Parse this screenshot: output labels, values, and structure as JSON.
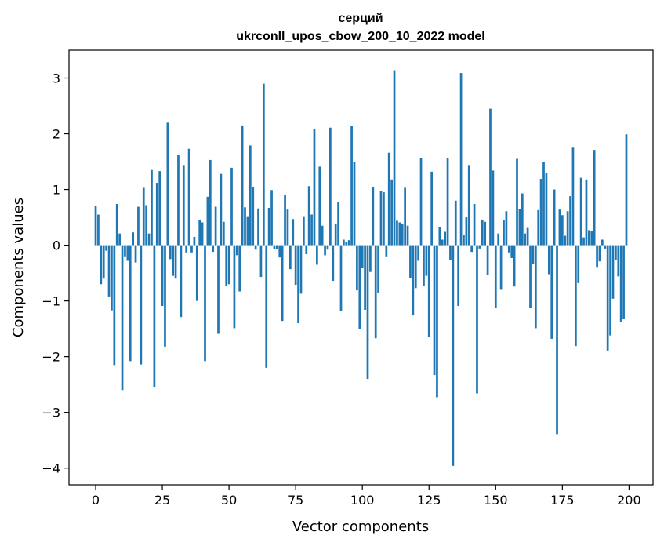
{
  "chart_data": {
    "type": "bar",
    "title_line1": "серций",
    "title_line2": "ukrconll_upos_cbow_200_10_2022 model",
    "xlabel": "Vector components",
    "ylabel": "Components values",
    "xlim": [
      -10,
      209
    ],
    "ylim": [
      -4.3,
      3.5
    ],
    "x_ticks": [
      0,
      25,
      50,
      75,
      100,
      125,
      150,
      175,
      200
    ],
    "x_tick_labels": [
      "0",
      "25",
      "50",
      "75",
      "100",
      "125",
      "150",
      "175",
      "200"
    ],
    "y_ticks": [
      -4,
      -3,
      -2,
      -1,
      0,
      1,
      2,
      3
    ],
    "y_tick_labels": [
      "−4",
      "−3",
      "−2",
      "−1",
      "0",
      "1",
      "2",
      "3"
    ],
    "bar_color": "#1f77b4",
    "x": [
      0,
      1,
      2,
      3,
      4,
      5,
      6,
      7,
      8,
      9,
      10,
      11,
      12,
      13,
      14,
      15,
      16,
      17,
      18,
      19,
      20,
      21,
      22,
      23,
      24,
      25,
      26,
      27,
      28,
      29,
      30,
      31,
      32,
      33,
      34,
      35,
      36,
      37,
      38,
      39,
      40,
      41,
      42,
      43,
      44,
      45,
      46,
      47,
      48,
      49,
      50,
      51,
      52,
      53,
      54,
      55,
      56,
      57,
      58,
      59,
      60,
      61,
      62,
      63,
      64,
      65,
      66,
      67,
      68,
      69,
      70,
      71,
      72,
      73,
      74,
      75,
      76,
      77,
      78,
      79,
      80,
      81,
      82,
      83,
      84,
      85,
      86,
      87,
      88,
      89,
      90,
      91,
      92,
      93,
      94,
      95,
      96,
      97,
      98,
      99,
      100,
      101,
      102,
      103,
      104,
      105,
      106,
      107,
      108,
      109,
      110,
      111,
      112,
      113,
      114,
      115,
      116,
      117,
      118,
      119,
      120,
      121,
      122,
      123,
      124,
      125,
      126,
      127,
      128,
      129,
      130,
      131,
      132,
      133,
      134,
      135,
      136,
      137,
      138,
      139,
      140,
      141,
      142,
      143,
      144,
      145,
      146,
      147,
      148,
      149,
      150,
      151,
      152,
      153,
      154,
      155,
      156,
      157,
      158,
      159,
      160,
      161,
      162,
      163,
      164,
      165,
      166,
      167,
      168,
      169,
      170,
      171,
      172,
      173,
      174,
      175,
      176,
      177,
      178,
      179,
      180,
      181,
      182,
      183,
      184,
      185,
      186,
      187,
      188,
      189,
      190,
      191,
      192,
      193,
      194,
      195,
      196,
      197,
      198,
      199
    ],
    "values": [
      0.7,
      0.55,
      -0.7,
      -0.6,
      -0.1,
      -0.92,
      -1.17,
      -2.15,
      0.74,
      0.21,
      -2.6,
      -0.2,
      -0.28,
      -2.08,
      0.23,
      -0.31,
      0.69,
      -2.14,
      1.03,
      0.72,
      0.21,
      1.35,
      -2.54,
      1.12,
      1.33,
      -1.09,
      -1.82,
      2.2,
      -0.25,
      -0.55,
      -0.6,
      1.62,
      -1.29,
      1.44,
      -0.13,
      1.73,
      -0.13,
      0.15,
      -1.0,
      0.46,
      0.41,
      -2.08,
      0.87,
      1.53,
      -0.12,
      0.69,
      -1.59,
      1.28,
      0.42,
      -0.73,
      -0.7,
      1.39,
      -1.49,
      -0.18,
      -0.83,
      2.15,
      0.68,
      0.52,
      1.79,
      1.05,
      -0.08,
      0.66,
      -0.57,
      2.9,
      -2.2,
      0.67,
      0.99,
      -0.07,
      -0.07,
      -0.22,
      -1.36,
      0.91,
      0.64,
      -0.43,
      0.47,
      -0.71,
      -1.4,
      -0.87,
      0.52,
      -0.16,
      1.06,
      0.55,
      2.08,
      -0.35,
      1.41,
      0.35,
      -0.18,
      -0.08,
      2.11,
      -0.64,
      0.39,
      0.77,
      -1.18,
      0.1,
      0.06,
      0.09,
      2.14,
      1.5,
      -0.81,
      -1.5,
      -0.4,
      -1.16,
      -2.4,
      -0.48,
      1.05,
      -1.67,
      -0.85,
      0.97,
      0.95,
      -0.2,
      1.66,
      1.18,
      3.14,
      0.44,
      0.41,
      0.39,
      1.03,
      0.35,
      -0.59,
      -1.26,
      -0.77,
      -0.28,
      1.57,
      -0.73,
      -0.55,
      -1.65,
      1.32,
      -2.33,
      -2.73,
      0.32,
      0.1,
      0.24,
      1.57,
      -0.27,
      -3.96,
      0.8,
      -1.09,
      3.09,
      0.19,
      0.5,
      1.44,
      -0.12,
      0.74,
      -2.66,
      -0.06,
      0.46,
      0.42,
      -0.53,
      2.45,
      1.34,
      -1.12,
      0.21,
      -0.8,
      0.45,
      0.61,
      -0.13,
      -0.23,
      -0.74,
      1.55,
      0.65,
      0.93,
      0.21,
      0.31,
      -1.12,
      -0.34,
      -1.49,
      0.63,
      1.19,
      1.5,
      1.29,
      -0.52,
      -1.68,
      1.0,
      -3.39,
      0.64,
      0.54,
      0.17,
      0.61,
      0.88,
      1.75,
      -1.81,
      -0.68,
      1.21,
      0.14,
      1.18,
      0.27,
      0.25,
      1.71,
      -0.39,
      -0.29,
      0.1,
      -0.06,
      -1.89,
      -1.62,
      -0.96,
      -0.26,
      -0.56,
      -1.37,
      -1.32,
      1.99
    ]
  }
}
